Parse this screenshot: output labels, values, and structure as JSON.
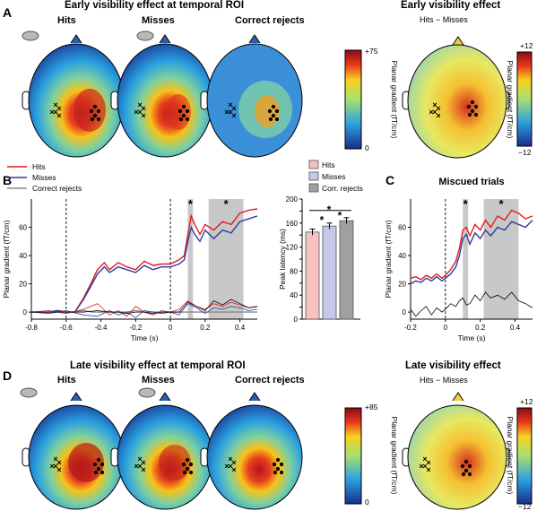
{
  "panels": {
    "A": {
      "letter": "A",
      "title": "Early visibility effect at temporal ROI",
      "columns": [
        "Hits",
        "Misses",
        "Correct rejects"
      ],
      "colorbar": {
        "max": "+75",
        "min": "0",
        "label": "Planar gradient (fT/cm)"
      },
      "diff_title": "Early visibility effect",
      "diff_subtitle": "Hits − Misses",
      "diff_colorbar": {
        "max": "+12",
        "min": "−12",
        "label": "Planar gradient (fT/cm)"
      }
    },
    "B": {
      "letter": "B"
    },
    "C": {
      "letter": "C"
    },
    "D": {
      "letter": "D",
      "title": "Late visibility effect at temporal ROI",
      "columns": [
        "Hits",
        "Misses",
        "Correct rejects"
      ],
      "colorbar": {
        "max": "+85",
        "min": "0",
        "label": "Planar gradient (fT/cm)"
      },
      "diff_title": "Late visibility effect",
      "diff_subtitle": "Hits − Misses",
      "diff_colorbar": {
        "max": "+12",
        "min": "−12",
        "label": "Planar gradient (fT/cm)"
      }
    }
  },
  "colors": {
    "hits": "#e41a1c",
    "misses": "#2c3e9e",
    "correct_rejects": "#888888",
    "difference": "#000000",
    "shade": "#c8c8c8"
  },
  "chart_data": [
    {
      "type": "line",
      "panel": "B",
      "xlabel": "Time (s)",
      "ylabel": "Planar gradient (fT/cm)",
      "xlim": [
        -0.8,
        0.5
      ],
      "ylim": [
        -5,
        80
      ],
      "xticks": [
        "-0.8",
        "-0.6",
        "-0.4",
        "-0.2",
        "0",
        "0.2",
        "0.4"
      ],
      "xtick_values": [
        -0.8,
        -0.6,
        -0.4,
        -0.2,
        0,
        0.2,
        0.4
      ],
      "yticks": [
        "0",
        "20",
        "40",
        "60"
      ],
      "ytick_values": [
        0,
        20,
        40,
        60
      ],
      "legend": [
        "Hits",
        "Misses",
        "Correct rejects"
      ],
      "vlines": [
        -0.6,
        0
      ],
      "shaded": [
        [
          0.1,
          0.13
        ],
        [
          0.22,
          0.42
        ]
      ],
      "sig_marks": [
        {
          "x": 0.115,
          "label": "*"
        },
        {
          "x": 0.32,
          "label": "*"
        }
      ],
      "series": [
        {
          "name": "Hits",
          "x": [
            -0.8,
            -0.75,
            -0.7,
            -0.65,
            -0.6,
            -0.55,
            -0.5,
            -0.45,
            -0.42,
            -0.38,
            -0.35,
            -0.3,
            -0.25,
            -0.2,
            -0.15,
            -0.1,
            -0.05,
            0,
            0.05,
            0.08,
            0.1,
            0.12,
            0.14,
            0.17,
            0.2,
            0.25,
            0.3,
            0.35,
            0.4,
            0.45,
            0.5
          ],
          "values": [
            0,
            0,
            0,
            1,
            0,
            0,
            10,
            22,
            30,
            35,
            30,
            35,
            32,
            30,
            36,
            33,
            34,
            34,
            37,
            40,
            55,
            68,
            62,
            55,
            62,
            58,
            64,
            62,
            70,
            72,
            73
          ]
        },
        {
          "name": "Misses",
          "x": [
            -0.8,
            -0.75,
            -0.7,
            -0.65,
            -0.6,
            -0.55,
            -0.5,
            -0.45,
            -0.42,
            -0.38,
            -0.35,
            -0.3,
            -0.25,
            -0.2,
            -0.15,
            -0.1,
            -0.05,
            0,
            0.05,
            0.08,
            0.1,
            0.12,
            0.14,
            0.17,
            0.2,
            0.25,
            0.3,
            0.35,
            0.4,
            0.45,
            0.5
          ],
          "values": [
            0,
            0,
            0,
            1,
            0,
            0,
            9,
            20,
            27,
            32,
            28,
            32,
            30,
            28,
            33,
            30,
            32,
            32,
            34,
            37,
            50,
            60,
            55,
            50,
            58,
            52,
            58,
            56,
            64,
            66,
            68
          ]
        },
        {
          "name": "Correct rejects",
          "x": [
            -0.8,
            -0.75,
            -0.7,
            -0.65,
            -0.6,
            -0.55,
            -0.5,
            -0.45,
            -0.4,
            -0.35,
            -0.3,
            -0.25,
            -0.2,
            -0.15,
            -0.1,
            -0.05,
            0,
            0.05,
            0.1,
            0.15,
            0.2,
            0.25,
            0.3,
            0.35,
            0.4,
            0.45,
            0.5
          ],
          "values": [
            0,
            0,
            0,
            0,
            0,
            0,
            1,
            0,
            0,
            0,
            0,
            0,
            1,
            0,
            0,
            0,
            0,
            0,
            0,
            0,
            0,
            0,
            0,
            0,
            0,
            0,
            0
          ]
        },
        {
          "name": "Hits − Misses (red)",
          "x": [
            -0.8,
            -0.7,
            -0.6,
            -0.5,
            -0.42,
            -0.35,
            -0.3,
            -0.25,
            -0.2,
            -0.15,
            -0.1,
            -0.05,
            0,
            0.05,
            0.1,
            0.15,
            0.2,
            0.25,
            0.3,
            0.35,
            0.4,
            0.45,
            0.5
          ],
          "values": [
            0,
            1,
            -1,
            2,
            6,
            -2,
            1,
            -3,
            4,
            0,
            -2,
            1,
            0,
            2,
            8,
            4,
            2,
            6,
            4,
            7,
            5,
            3,
            4
          ]
        },
        {
          "name": "Hits − Misses (blue)",
          "x": [
            -0.8,
            -0.7,
            -0.6,
            -0.5,
            -0.42,
            -0.35,
            -0.3,
            -0.25,
            -0.2,
            -0.15,
            -0.1,
            -0.05,
            0,
            0.05,
            0.1,
            0.15,
            0.2,
            0.25,
            0.3,
            0.35,
            0.4,
            0.45,
            0.5
          ],
          "values": [
            0,
            -1,
            1,
            -2,
            -3,
            1,
            -2,
            0,
            -4,
            1,
            0,
            -1,
            0,
            -2,
            6,
            3,
            -1,
            3,
            2,
            4,
            3,
            1,
            2
          ]
        },
        {
          "name": "Hits − Misses (black)",
          "x": [
            -0.8,
            -0.7,
            -0.6,
            -0.5,
            -0.42,
            -0.35,
            -0.3,
            -0.25,
            -0.2,
            -0.15,
            -0.1,
            -0.05,
            0,
            0.05,
            0.1,
            0.15,
            0.2,
            0.25,
            0.3,
            0.35,
            0.4,
            0.45,
            0.5
          ],
          "values": [
            0,
            0,
            0,
            0,
            1,
            0,
            0,
            -1,
            0,
            0,
            -1,
            0,
            0,
            0,
            7,
            4,
            1,
            8,
            5,
            9,
            6,
            3,
            4
          ]
        }
      ]
    },
    {
      "type": "bar",
      "panel": "B-inset",
      "ylabel": "Peak latency (ms)",
      "ylim": [
        0,
        200
      ],
      "yticks": [
        "0",
        "20",
        "40",
        "60",
        "80",
        "100",
        "120",
        "140",
        "160",
        "180",
        "200"
      ],
      "ytick_values": [
        0,
        20,
        40,
        60,
        80,
        100,
        120,
        140,
        160,
        180,
        200
      ],
      "categories": [
        "Hits",
        "Misses",
        "Corr. rejects"
      ],
      "values": [
        145,
        155,
        164
      ],
      "errors": [
        5,
        5,
        5
      ],
      "bar_colors": [
        "#f5c1c1",
        "#c6c8e8",
        "#a0a0a0"
      ],
      "sig_marks": [
        "*",
        "*",
        "*"
      ]
    },
    {
      "type": "line",
      "panel": "C",
      "title": "Miscued trials",
      "xlabel": "Time (s)",
      "ylabel": "Planar gradient (fT/cm)",
      "xlim": [
        -0.2,
        0.5
      ],
      "ylim": [
        -5,
        80
      ],
      "xticks": [
        "-0.2",
        "0",
        "0.2",
        "0.4"
      ],
      "xtick_values": [
        -0.2,
        0,
        0.2,
        0.4
      ],
      "yticks": [
        "0",
        "20",
        "40",
        "60"
      ],
      "ytick_values": [
        0,
        20,
        40,
        60
      ],
      "vlines": [
        0
      ],
      "shaded": [
        [
          0.1,
          0.13
        ],
        [
          0.22,
          0.42
        ]
      ],
      "sig_marks": [
        {
          "x": 0.115,
          "label": "*"
        },
        {
          "x": 0.32,
          "label": "*"
        }
      ],
      "series": [
        {
          "name": "Hits",
          "x": [
            -0.2,
            -0.17,
            -0.14,
            -0.11,
            -0.08,
            -0.05,
            -0.02,
            0,
            0.03,
            0.06,
            0.08,
            0.1,
            0.12,
            0.14,
            0.17,
            0.2,
            0.23,
            0.26,
            0.3,
            0.34,
            0.38,
            0.42,
            0.46,
            0.5
          ],
          "values": [
            24,
            25,
            23,
            26,
            24,
            27,
            24,
            26,
            30,
            36,
            45,
            58,
            60,
            54,
            62,
            58,
            65,
            60,
            68,
            65,
            72,
            70,
            66,
            68
          ]
        },
        {
          "name": "Misses",
          "x": [
            -0.2,
            -0.17,
            -0.14,
            -0.11,
            -0.08,
            -0.05,
            -0.02,
            0,
            0.03,
            0.06,
            0.08,
            0.1,
            0.12,
            0.14,
            0.17,
            0.2,
            0.23,
            0.26,
            0.3,
            0.34,
            0.38,
            0.42,
            0.46,
            0.5
          ],
          "values": [
            20,
            22,
            21,
            24,
            22,
            25,
            22,
            24,
            27,
            32,
            40,
            52,
            55,
            48,
            56,
            52,
            58,
            54,
            60,
            58,
            64,
            62,
            60,
            65
          ]
        },
        {
          "name": "Hits − Misses",
          "x": [
            -0.2,
            -0.17,
            -0.14,
            -0.11,
            -0.08,
            -0.05,
            -0.02,
            0,
            0.03,
            0.06,
            0.08,
            0.1,
            0.12,
            0.14,
            0.17,
            0.2,
            0.23,
            0.26,
            0.3,
            0.34,
            0.38,
            0.42,
            0.46,
            0.5
          ],
          "values": [
            2,
            -3,
            1,
            4,
            -2,
            3,
            0,
            2,
            6,
            4,
            8,
            10,
            5,
            6,
            12,
            8,
            14,
            10,
            12,
            9,
            14,
            8,
            6,
            3
          ]
        }
      ]
    }
  ]
}
